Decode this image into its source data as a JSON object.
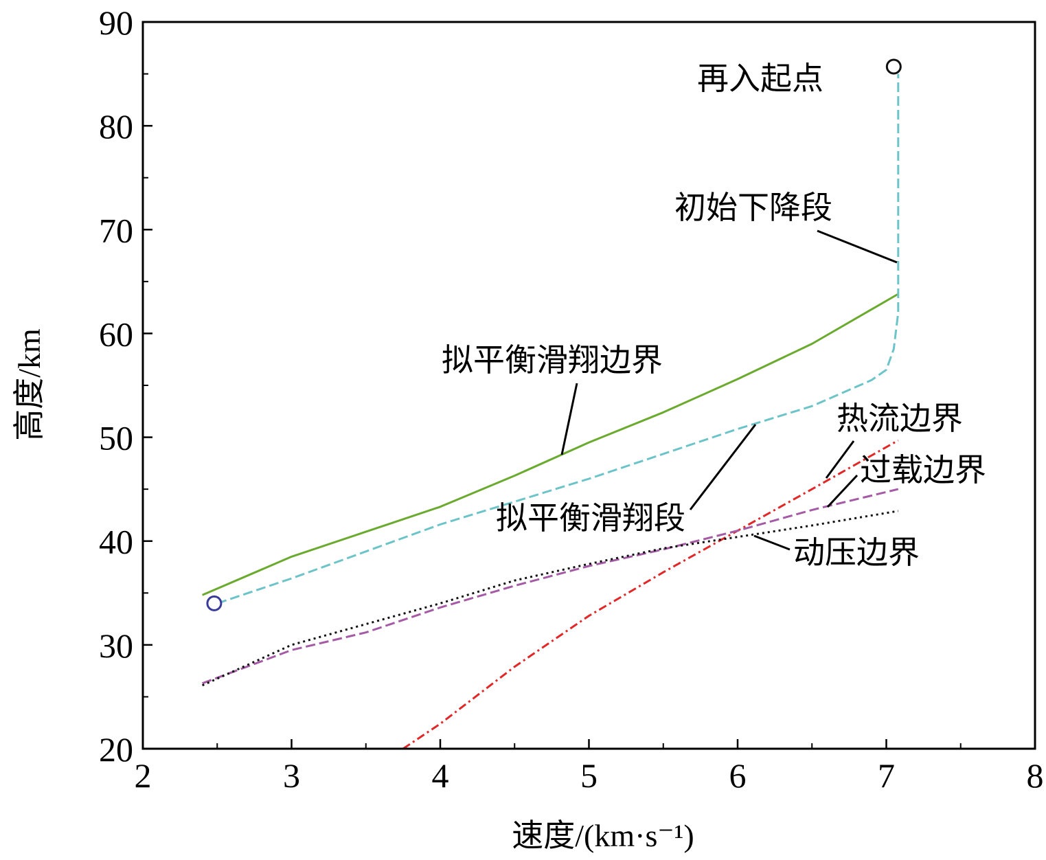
{
  "chart_data": {
    "type": "line",
    "xlabel": "速度/(km·s⁻¹)",
    "ylabel": "高度/km",
    "xlim": [
      2,
      8
    ],
    "ylim": [
      20,
      90
    ],
    "xticks": [
      2,
      3,
      4,
      5,
      6,
      7,
      8
    ],
    "yticks": [
      20,
      30,
      40,
      50,
      60,
      70,
      80,
      90
    ],
    "grid": false,
    "series": [
      {
        "name": "拟平衡滑翔边界",
        "color": "#6aaa2e",
        "style": "solid",
        "x": [
          2.4,
          3.0,
          3.5,
          4.0,
          4.5,
          5.0,
          5.5,
          6.0,
          6.5,
          7.08
        ],
        "y": [
          34.8,
          38.5,
          40.9,
          43.3,
          46.3,
          49.5,
          52.4,
          55.6,
          59.0,
          63.8
        ]
      },
      {
        "name": "拟平衡滑翔段",
        "color": "#6cc4c8",
        "style": "dashed",
        "x": [
          2.5,
          3.0,
          3.5,
          4.0,
          4.5,
          5.0,
          5.5,
          6.0,
          6.5,
          6.9,
          7.0,
          7.05,
          7.08,
          7.08,
          7.08,
          7.08
        ],
        "y": [
          34.0,
          36.4,
          39.0,
          41.6,
          43.8,
          46.0,
          48.4,
          50.8,
          53.0,
          55.5,
          56.5,
          58.5,
          62.0,
          64.0,
          75.0,
          85.0
        ]
      },
      {
        "name": "热流边界",
        "color": "#e02828",
        "style": "dashdot",
        "x": [
          3.75,
          4.0,
          4.5,
          5.0,
          5.5,
          6.0,
          6.5,
          7.08
        ],
        "y": [
          20.0,
          22.4,
          27.9,
          32.8,
          37.0,
          41.0,
          45.0,
          49.7
        ]
      },
      {
        "name": "过载边界",
        "color": "#a55aa5",
        "style": "dashed",
        "x": [
          2.4,
          3.0,
          3.5,
          4.0,
          4.5,
          5.0,
          5.5,
          6.0,
          6.5,
          7.08
        ],
        "y": [
          26.3,
          29.5,
          31.2,
          33.6,
          35.7,
          37.6,
          39.2,
          41.0,
          43.0,
          45.0
        ]
      },
      {
        "name": "动压边界",
        "color": "#111111",
        "style": "dotted",
        "x": [
          2.4,
          3.0,
          3.5,
          4.0,
          4.5,
          5.0,
          5.5,
          6.0,
          6.5,
          7.08
        ],
        "y": [
          26.1,
          30.0,
          32.0,
          34.0,
          36.2,
          37.8,
          39.3,
          40.4,
          41.5,
          42.9
        ]
      }
    ],
    "markers": [
      {
        "x": 7.05,
        "y": 85.7,
        "color": "#111111"
      },
      {
        "x": 2.48,
        "y": 34.0,
        "color": "#3a3a9a"
      }
    ],
    "annotations": [
      {
        "text": "再入起点"
      },
      {
        "text": "初始下降段"
      },
      {
        "text": "拟平衡滑翔边界"
      },
      {
        "text": "拟平衡滑翔段"
      },
      {
        "text": "热流边界"
      },
      {
        "text": "过载边界"
      },
      {
        "text": "动压边界"
      }
    ]
  }
}
